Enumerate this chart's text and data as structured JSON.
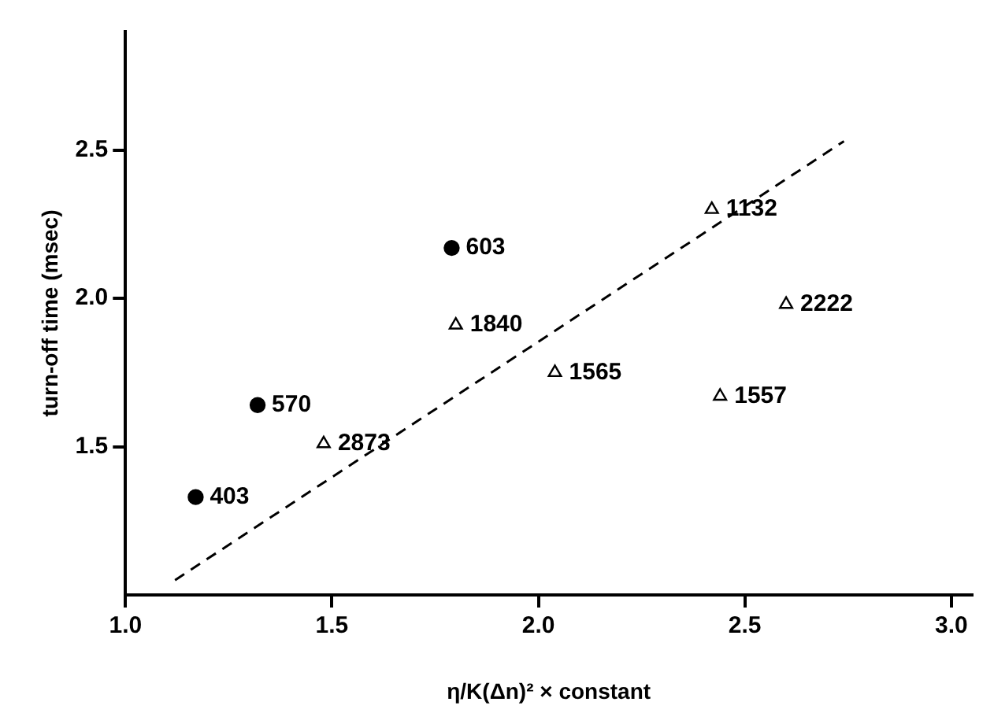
{
  "chart_data": {
    "type": "scatter",
    "xlabel": "η/K(Δn)² × constant",
    "ylabel": "turn-off time (msec)",
    "xlim": [
      1.0,
      3.05
    ],
    "xticks": [
      {
        "value": 1,
        "label": "1.0"
      },
      1.5,
      {
        "value": 2,
        "label": "2.0"
      },
      2.5,
      {
        "value": 3,
        "label": "3.0"
      }
    ],
    "annotations": [
      {
        "text": "2873",
        "x": 1.48,
        "y": 1.51
      },
      {
        "text": "1840",
        "x": 1.8,
        "y": 1.91
      },
      {
        "text": "1565",
        "x": 2.04,
        "y": 1.75
      },
      {
        "text": "1132",
        "x": 2.42,
        "y": 2.3
      },
      {
        "text": "2222",
        "x": 2.6,
        "y": 1.98
      },
      {
        "text": "1557",
        "x": 2.44,
        "y": 1.67
      },
      {
        "text": "403",
        "x": 1.17,
        "y": 1.33
      },
      {
        "text": "570",
        "x": 1.32,
        "y": 1.64
      },
      {
        "text": "603",
        "x": 1.79,
        "y": 2.17
      }
    ],
    "ylim": [
      1.0,
      2.9
    ],
    "yticks": [
      1.5,
      {
        "value": 2,
        "label": "2.0"
      },
      2.5
    ],
    "grid": false,
    "legend": false,
    "series": [
      {
        "type": "scatter",
        "marker": "triangle",
        "color": "#000000",
        "x": [
          1.48,
          1.8,
          2.04,
          2.42,
          2.6,
          2.44
        ],
        "values": [
          1.51,
          1.91,
          1.75,
          2.3,
          1.98,
          1.67
        ]
      },
      {
        "type": "scatter",
        "marker": "circle",
        "color": "#000000",
        "x": [
          1.17,
          1.32,
          1.79
        ],
        "values": [
          1.33,
          1.64,
          2.17
        ]
      },
      {
        "type": "line",
        "marker": "none",
        "line_style": "dashed",
        "color": "#000000",
        "x": [
          1.12,
          2.74
        ],
        "values": [
          1.05,
          2.53
        ]
      }
    ]
  }
}
